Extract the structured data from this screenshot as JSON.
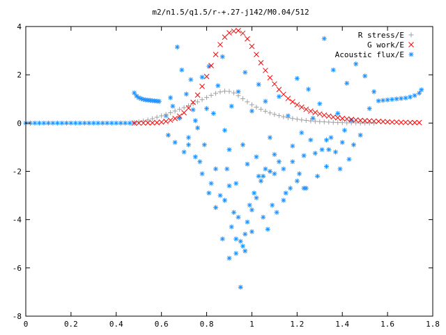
{
  "chart_data": {
    "type": "scatter",
    "title": "m2/n1.5/q1.5/r-+.27-j142/M0.04/512",
    "xlabel": "",
    "ylabel": "",
    "xlim": [
      0,
      1.8
    ],
    "ylim": [
      -8,
      4
    ],
    "x_ticks": [
      "0",
      "0.2",
      "0.4",
      "0.6",
      "0.8",
      "1",
      "1.2",
      "1.4",
      "1.6",
      "1.8"
    ],
    "y_ticks": [
      "4",
      "2",
      "0",
      "-2",
      "-4",
      "-6",
      "-8"
    ],
    "grid": false,
    "legend_position": "top-right",
    "series": [
      {
        "name": "R stress/E",
        "marker": "+",
        "color": "#a0a0a0",
        "points": [
          [
            0.48,
            0.02
          ],
          [
            0.5,
            0.05
          ],
          [
            0.52,
            0.09
          ],
          [
            0.54,
            0.13
          ],
          [
            0.56,
            0.18
          ],
          [
            0.58,
            0.24
          ],
          [
            0.6,
            0.3
          ],
          [
            0.62,
            0.36
          ],
          [
            0.64,
            0.43
          ],
          [
            0.66,
            0.5
          ],
          [
            0.68,
            0.57
          ],
          [
            0.7,
            0.64
          ],
          [
            0.72,
            0.72
          ],
          [
            0.74,
            0.8
          ],
          [
            0.76,
            0.88
          ],
          [
            0.78,
            0.97
          ],
          [
            0.8,
            1.06
          ],
          [
            0.82,
            1.15
          ],
          [
            0.84,
            1.23
          ],
          [
            0.86,
            1.29
          ],
          [
            0.88,
            1.32
          ],
          [
            0.9,
            1.31
          ],
          [
            0.92,
            1.25
          ],
          [
            0.94,
            1.14
          ],
          [
            0.96,
            1.01
          ],
          [
            0.98,
            0.88
          ],
          [
            1.0,
            0.76
          ],
          [
            1.02,
            0.66
          ],
          [
            1.04,
            0.57
          ],
          [
            1.06,
            0.49
          ],
          [
            1.08,
            0.42
          ],
          [
            1.1,
            0.36
          ],
          [
            1.12,
            0.31
          ],
          [
            1.14,
            0.26
          ],
          [
            1.16,
            0.22
          ],
          [
            1.18,
            0.19
          ],
          [
            1.2,
            0.16
          ],
          [
            1.22,
            0.13
          ],
          [
            1.24,
            0.11
          ],
          [
            1.26,
            0.09
          ],
          [
            1.28,
            0.07
          ],
          [
            1.3,
            0.06
          ],
          [
            1.32,
            0.05
          ],
          [
            1.34,
            0.04
          ],
          [
            1.36,
            0.03
          ],
          [
            1.38,
            0.02
          ],
          [
            1.4,
            0.02
          ],
          [
            1.42,
            0.01
          ],
          [
            1.44,
            0.01
          ],
          [
            1.46,
            0.01
          ],
          [
            1.48,
            0.0
          ],
          [
            1.5,
            0.0
          ],
          [
            1.52,
            0.0
          ],
          [
            1.54,
            0.0
          ]
        ]
      },
      {
        "name": "G work/E",
        "marker": "x",
        "color": "#ff0000",
        "points": [
          [
            0.48,
            0.0
          ],
          [
            0.5,
            0.0
          ],
          [
            0.52,
            0.0
          ],
          [
            0.54,
            0.01
          ],
          [
            0.56,
            0.01
          ],
          [
            0.58,
            0.02
          ],
          [
            0.6,
            0.04
          ],
          [
            0.62,
            0.07
          ],
          [
            0.64,
            0.12
          ],
          [
            0.66,
            0.19
          ],
          [
            0.68,
            0.29
          ],
          [
            0.7,
            0.43
          ],
          [
            0.72,
            0.62
          ],
          [
            0.74,
            0.86
          ],
          [
            0.76,
            1.16
          ],
          [
            0.78,
            1.52
          ],
          [
            0.8,
            1.93
          ],
          [
            0.82,
            2.38
          ],
          [
            0.84,
            2.84
          ],
          [
            0.86,
            3.25
          ],
          [
            0.88,
            3.56
          ],
          [
            0.9,
            3.74
          ],
          [
            0.92,
            3.81
          ],
          [
            0.94,
            3.83
          ],
          [
            0.96,
            3.72
          ],
          [
            0.98,
            3.49
          ],
          [
            1.0,
            3.18
          ],
          [
            1.02,
            2.84
          ],
          [
            1.04,
            2.5
          ],
          [
            1.06,
            2.18
          ],
          [
            1.08,
            1.88
          ],
          [
            1.1,
            1.62
          ],
          [
            1.12,
            1.39
          ],
          [
            1.14,
            1.19
          ],
          [
            1.16,
            1.02
          ],
          [
            1.18,
            0.88
          ],
          [
            1.2,
            0.76
          ],
          [
            1.22,
            0.66
          ],
          [
            1.24,
            0.57
          ],
          [
            1.26,
            0.5
          ],
          [
            1.28,
            0.44
          ],
          [
            1.3,
            0.38
          ],
          [
            1.32,
            0.33
          ],
          [
            1.34,
            0.29
          ],
          [
            1.36,
            0.25
          ],
          [
            1.38,
            0.22
          ],
          [
            1.4,
            0.19
          ],
          [
            1.42,
            0.17
          ],
          [
            1.44,
            0.15
          ],
          [
            1.46,
            0.13
          ],
          [
            1.48,
            0.11
          ],
          [
            1.5,
            0.1
          ],
          [
            1.52,
            0.09
          ],
          [
            1.54,
            0.08
          ],
          [
            1.56,
            0.07
          ],
          [
            1.58,
            0.06
          ],
          [
            1.6,
            0.05
          ],
          [
            1.62,
            0.04
          ],
          [
            1.64,
            0.04
          ],
          [
            1.66,
            0.03
          ],
          [
            1.68,
            0.03
          ],
          [
            1.7,
            0.02
          ],
          [
            1.72,
            0.02
          ],
          [
            1.74,
            0.02
          ]
        ]
      },
      {
        "name": "Acoustic flux/E",
        "marker": "*",
        "color": "#1e90ff",
        "points": [
          [
            0.0,
            0.0
          ],
          [
            0.02,
            0.0
          ],
          [
            0.04,
            0.0
          ],
          [
            0.06,
            0.0
          ],
          [
            0.08,
            0.0
          ],
          [
            0.1,
            0.0
          ],
          [
            0.12,
            0.0
          ],
          [
            0.14,
            0.0
          ],
          [
            0.16,
            0.0
          ],
          [
            0.18,
            0.0
          ],
          [
            0.2,
            0.0
          ],
          [
            0.22,
            0.0
          ],
          [
            0.24,
            0.0
          ],
          [
            0.26,
            0.0
          ],
          [
            0.28,
            0.0
          ],
          [
            0.3,
            0.0
          ],
          [
            0.32,
            0.0
          ],
          [
            0.34,
            0.0
          ],
          [
            0.36,
            0.0
          ],
          [
            0.38,
            0.0
          ],
          [
            0.4,
            0.0
          ],
          [
            0.42,
            0.0
          ],
          [
            0.44,
            0.0
          ],
          [
            0.46,
            0.0
          ],
          [
            0.48,
            0.0
          ],
          [
            0.48,
            1.25
          ],
          [
            0.49,
            1.12
          ],
          [
            0.5,
            1.05
          ],
          [
            0.51,
            1.01
          ],
          [
            0.52,
            0.98
          ],
          [
            0.53,
            0.96
          ],
          [
            0.54,
            0.95
          ],
          [
            0.55,
            0.94
          ],
          [
            0.56,
            0.93
          ],
          [
            0.57,
            0.92
          ],
          [
            0.58,
            0.91
          ],
          [
            0.59,
            0.9
          ],
          [
            1.56,
            0.92
          ],
          [
            1.58,
            0.94
          ],
          [
            1.6,
            0.96
          ],
          [
            1.62,
            0.98
          ],
          [
            1.64,
            1.0
          ],
          [
            1.66,
            1.02
          ],
          [
            1.68,
            1.04
          ],
          [
            1.7,
            1.08
          ],
          [
            1.72,
            1.14
          ],
          [
            1.74,
            1.24
          ],
          [
            1.75,
            1.38
          ],
          [
            0.67,
            3.15
          ],
          [
            0.69,
            2.2
          ],
          [
            0.71,
            1.2
          ],
          [
            0.73,
            1.8
          ],
          [
            0.74,
            0.55
          ],
          [
            0.76,
            -0.2
          ],
          [
            0.78,
            1.9
          ],
          [
            0.81,
            2.35
          ],
          [
            0.83,
            0.4
          ],
          [
            0.85,
            1.55
          ],
          [
            0.87,
            2.75
          ],
          [
            0.88,
            -0.3
          ],
          [
            0.89,
            -1.9
          ],
          [
            0.9,
            -1.1
          ],
          [
            0.91,
            0.7
          ],
          [
            0.93,
            -2.5
          ],
          [
            0.94,
            1.3
          ],
          [
            0.96,
            -0.9
          ],
          [
            0.97,
            2.1
          ],
          [
            0.98,
            -1.7
          ],
          [
            1.0,
            0.5
          ],
          [
            1.02,
            -1.4
          ],
          [
            1.03,
            1.6
          ],
          [
            1.05,
            -2.2
          ],
          [
            1.06,
            0.9
          ],
          [
            1.08,
            -0.6
          ],
          [
            1.1,
            -1.3
          ],
          [
            1.12,
            1.1
          ],
          [
            1.14,
            -1.9
          ],
          [
            1.16,
            0.3
          ],
          [
            1.18,
            -0.95
          ],
          [
            1.2,
            1.85
          ],
          [
            1.22,
            -0.4
          ],
          [
            1.24,
            -2.7
          ],
          [
            1.25,
            1.4
          ],
          [
            1.27,
            0.2
          ],
          [
            1.28,
            -1.25
          ],
          [
            1.3,
            0.8
          ],
          [
            1.32,
            3.5
          ],
          [
            1.33,
            -0.7
          ],
          [
            1.34,
            -1.1
          ],
          [
            1.36,
            2.2
          ],
          [
            1.38,
            0.4
          ],
          [
            1.4,
            -0.8
          ],
          [
            1.42,
            1.65
          ],
          [
            1.44,
            0.1
          ],
          [
            1.46,
            2.45
          ],
          [
            1.48,
            -0.5
          ],
          [
            1.5,
            1.95
          ],
          [
            1.52,
            0.6
          ],
          [
            1.54,
            1.3
          ],
          [
            0.62,
            0.3
          ],
          [
            0.63,
            -0.5
          ],
          [
            0.64,
            1.05
          ],
          [
            0.65,
            0.7
          ],
          [
            0.66,
            -0.8
          ],
          [
            0.68,
            0.2
          ],
          [
            0.7,
            -1.2
          ],
          [
            0.72,
            -0.6
          ],
          [
            0.75,
            0.1
          ],
          [
            0.77,
            -1.6
          ],
          [
            0.79,
            -0.9
          ],
          [
            0.8,
            0.6
          ],
          [
            0.82,
            -2.5
          ],
          [
            0.84,
            -1.9
          ],
          [
            0.86,
            -3.0
          ],
          [
            0.88,
            -3.2
          ],
          [
            0.9,
            -2.6
          ],
          [
            0.91,
            -4.3
          ],
          [
            0.92,
            -3.7
          ],
          [
            0.93,
            -4.8
          ],
          [
            0.94,
            -3.9
          ],
          [
            0.95,
            -4.9
          ],
          [
            0.96,
            -5.1
          ],
          [
            0.97,
            -4.6
          ],
          [
            0.98,
            -4.1
          ],
          [
            0.99,
            -3.4
          ],
          [
            1.0,
            -3.6
          ],
          [
            1.01,
            -2.9
          ],
          [
            1.02,
            -3.1
          ],
          [
            1.03,
            -2.2
          ],
          [
            1.04,
            -2.4
          ],
          [
            1.06,
            -1.9
          ],
          [
            1.08,
            -2.0
          ],
          [
            1.09,
            -3.4
          ],
          [
            1.1,
            -2.1
          ],
          [
            1.12,
            -1.6
          ],
          [
            1.15,
            -2.9
          ],
          [
            1.18,
            -1.6
          ],
          [
            1.21,
            -2.1
          ],
          [
            1.23,
            -1.35
          ],
          [
            1.26,
            -0.7
          ],
          [
            1.29,
            -2.2
          ],
          [
            1.31,
            -1.1
          ],
          [
            1.33,
            -1.8
          ],
          [
            1.35,
            -0.6
          ],
          [
            1.37,
            -1.2
          ],
          [
            1.39,
            -1.9
          ],
          [
            1.41,
            -0.3
          ],
          [
            1.43,
            -1.5
          ],
          [
            1.45,
            -0.9
          ],
          [
            0.9,
            -5.6
          ],
          [
            0.93,
            -5.4
          ],
          [
            0.95,
            -6.8
          ],
          [
            0.97,
            -5.3
          ],
          [
            1.0,
            -4.5
          ],
          [
            0.87,
            -4.8
          ],
          [
            0.84,
            -3.5
          ],
          [
            0.81,
            -2.9
          ],
          [
            0.78,
            -2.1
          ],
          [
            0.75,
            -1.4
          ],
          [
            0.72,
            -0.9
          ],
          [
            1.05,
            -3.9
          ],
          [
            1.07,
            -4.4
          ],
          [
            1.11,
            -3.7
          ],
          [
            1.14,
            -3.2
          ],
          [
            1.17,
            -2.7
          ],
          [
            1.2,
            -2.4
          ],
          [
            1.23,
            -2.7
          ]
        ]
      }
    ]
  }
}
